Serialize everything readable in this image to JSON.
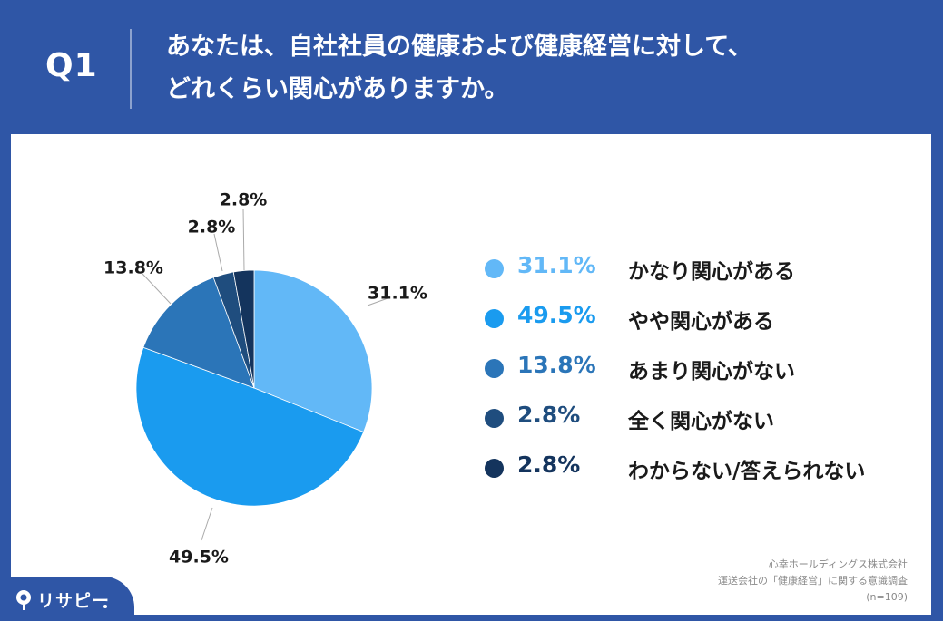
{
  "header": {
    "question_number": "Q1",
    "title_line1": "あなたは、自社社員の健康および健康経営に対して、",
    "title_line2": "どれくらい関心がありますか。"
  },
  "chart_data": {
    "type": "pie",
    "start_angle_deg": 0,
    "direction": "clockwise",
    "slices": [
      {
        "label": "かなり関心がある",
        "value": 31.1,
        "value_label": "31.1%",
        "color": "#62b8f7"
      },
      {
        "label": "やや関心がある",
        "value": 49.5,
        "value_label": "49.5%",
        "color": "#1a9bef"
      },
      {
        "label": "あまり関心がない",
        "value": 13.8,
        "value_label": "13.8%",
        "color": "#2b75b8"
      },
      {
        "label": "全く関心がない",
        "value": 2.8,
        "value_label": "2.8%",
        "color": "#1f4d7e"
      },
      {
        "label": "わからない/答えられない",
        "value": 2.8,
        "value_label": "2.8%",
        "color": "#14345d"
      }
    ],
    "legend_position": "right"
  },
  "source": {
    "line1": "心幸ホールディングス株式会社",
    "line2": "運送会社の「健康経営」に関する意識調査",
    "line3": "(n=109)"
  },
  "brand": {
    "name": "リサピー"
  }
}
